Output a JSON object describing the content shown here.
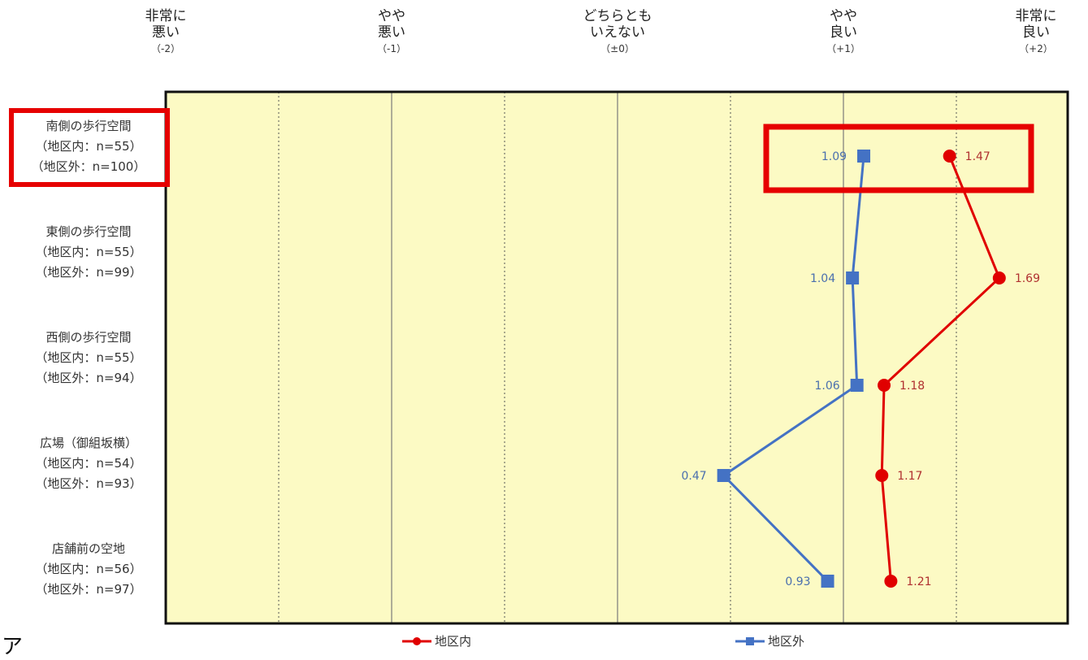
{
  "chart_data": {
    "type": "line",
    "orientation": "horizontal",
    "x_scale": {
      "min": -2,
      "max": 2.4,
      "ticks": [
        {
          "value": -2,
          "label_line1": "非常に",
          "label_line2": "悪い",
          "label_line3": "（-2）"
        },
        {
          "value": -1,
          "label_line1": "やや",
          "label_line2": "悪い",
          "label_line3": "（-1）"
        },
        {
          "value": 0,
          "label_line1": "どちらとも",
          "label_line2": "いえない",
          "label_line3": "（±0）"
        },
        {
          "value": 1,
          "label_line1": "やや",
          "label_line2": "良い",
          "label_line3": "（+1）"
        },
        {
          "value": 2,
          "label_line1": "非常に",
          "label_line2": "良い",
          "label_line3": "（+2）"
        }
      ]
    },
    "categories": [
      {
        "line1": "南側の歩行空間",
        "line2": "（地区内：n=55）",
        "line3": "（地区外：n=100）",
        "highlighted": true
      },
      {
        "line1": "東側の歩行空間",
        "line2": "（地区内：n=55）",
        "line3": "（地区外：n=99）",
        "highlighted": false
      },
      {
        "line1": "西側の歩行空間",
        "line2": "（地区内：n=55）",
        "line3": "（地区外：n=94）",
        "highlighted": false
      },
      {
        "line1": "広場（御組坂横）",
        "line2": "（地区内：n=54）",
        "line3": "（地区外：n=93）",
        "highlighted": false
      },
      {
        "line1": "店舗前の空地",
        "line2": "（地区内：n=56）",
        "line3": "（地区外：n=97）",
        "highlighted": false
      }
    ],
    "series": [
      {
        "name": "地区内",
        "color": "#e00000",
        "marker": "circle",
        "values": [
          1.47,
          1.69,
          1.18,
          1.17,
          1.21
        ],
        "labels": [
          "1.47",
          "1.69",
          "1.18",
          "1.17",
          "1.21"
        ]
      },
      {
        "name": "地区外",
        "color": "#4472c4",
        "marker": "square",
        "values": [
          1.09,
          1.04,
          1.06,
          0.47,
          0.93
        ],
        "labels": [
          "1.09",
          "1.04",
          "1.06",
          "0.47",
          "0.93"
        ]
      }
    ],
    "plot_background": "#fcfac4",
    "highlight_color": "#e60000",
    "grid": true,
    "legend_position": "bottom"
  },
  "stray_text": "ア"
}
